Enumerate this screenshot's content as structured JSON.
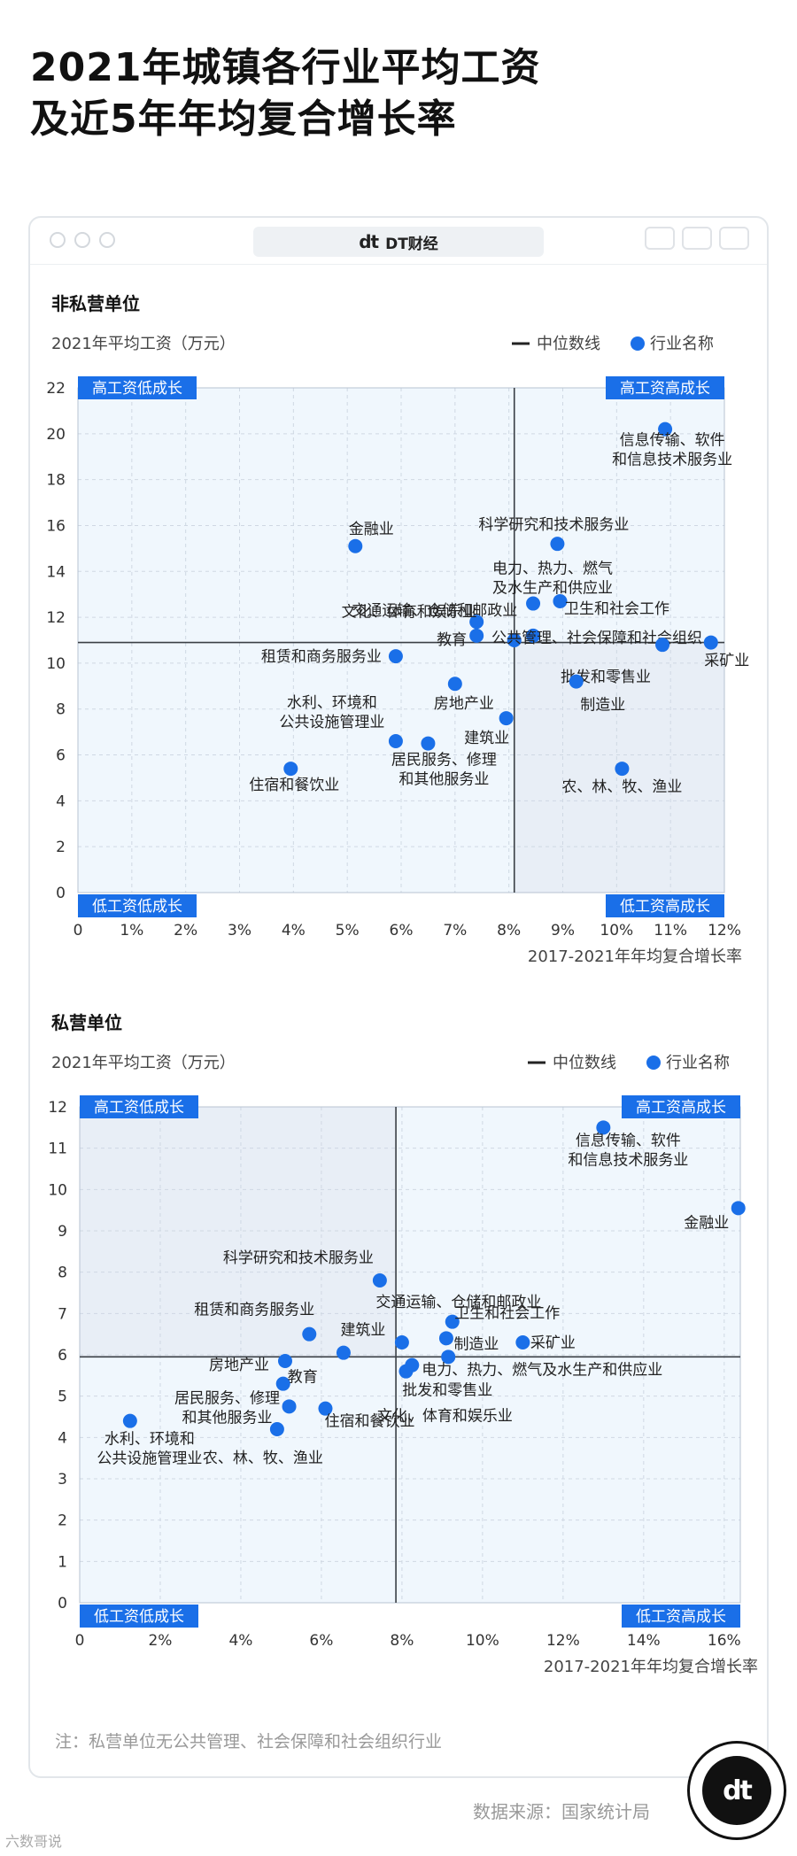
{
  "title": {
    "line1": "2021年城镇各行业平均工资",
    "line2": "及近5年年均复合增长率"
  },
  "window": {
    "brand": "DT财经",
    "logo": "dt"
  },
  "legend": {
    "median": "中位数线",
    "industry": "行业名称"
  },
  "quadrants": {
    "top_left": "高工资低成长",
    "top_right": "高工资高成长",
    "bottom_left": "低工资低成长",
    "bottom_right": "低工资高成长"
  },
  "colors": {
    "point": "#1a6fe8",
    "label_bg": "#1a6fe8",
    "quad_light": "#f0f7fd",
    "quad_dark": "#e8eef6",
    "median": "#3a3f45"
  },
  "chart_data": [
    {
      "type": "scatter",
      "title": "非私营单位",
      "ylabel": "2021年平均工资（万元）",
      "xlabel": "2017-2021年年均复合增长率",
      "xlim": [
        0,
        12
      ],
      "ylim": [
        0,
        22
      ],
      "xticks": [
        "0",
        "1%",
        "2%",
        "3%",
        "4%",
        "5%",
        "6%",
        "7%",
        "8%",
        "9%",
        "10%",
        "11%",
        "12%"
      ],
      "yticks": [
        "0",
        "2",
        "4",
        "6",
        "8",
        "10",
        "12",
        "14",
        "16",
        "18",
        "20",
        "22"
      ],
      "median": {
        "x": 8.1,
        "y": 10.9
      },
      "points": [
        {
          "name": "信息传输、软件和信息技术服务业",
          "lines": [
            "信息传输、软件",
            "和信息技术服务业"
          ],
          "x": 10.9,
          "y": 20.2
        },
        {
          "name": "金融业",
          "lines": [
            "金融业"
          ],
          "x": 5.15,
          "y": 15.1
        },
        {
          "name": "科学研究和技术服务业",
          "lines": [
            "科学研究和技术服务业"
          ],
          "x": 8.9,
          "y": 15.2
        },
        {
          "name": "电力、热力、燃气及水生产和供应业",
          "lines": [
            "电力、热力、燃气",
            "及水生产和供应业"
          ],
          "x": 8.45,
          "y": 12.6
        },
        {
          "name": "卫生和社会工作",
          "lines": [
            "卫生和社会工作"
          ],
          "x": 8.95,
          "y": 12.7
        },
        {
          "name": "交通运输、仓储和邮政业",
          "lines": [
            "交通运输、仓储和邮政业"
          ],
          "x": 8.1,
          "y": 11.0
        },
        {
          "name": "文化、体育和娱乐业",
          "lines": [
            "文化、体育和娱乐业"
          ],
          "x": 7.4,
          "y": 11.8
        },
        {
          "name": "教育",
          "lines": [
            "教育"
          ],
          "x": 7.4,
          "y": 11.2
        },
        {
          "name": "公共管理、社会保障和社会组织",
          "lines": [
            "公共管理、社会保障和社会组织"
          ],
          "x": 8.45,
          "y": 11.2
        },
        {
          "name": "采矿业",
          "lines": [
            "采矿业"
          ],
          "x": 11.75,
          "y": 10.9
        },
        {
          "name": "租赁和商务服务业",
          "lines": [
            "租赁和商务服务业"
          ],
          "x": 5.9,
          "y": 10.3
        },
        {
          "name": "批发和零售业",
          "lines": [
            "批发和零售业"
          ],
          "x": 10.85,
          "y": 10.8
        },
        {
          "name": "房地产业",
          "lines": [
            "房地产业"
          ],
          "x": 7.0,
          "y": 9.1
        },
        {
          "name": "制造业",
          "lines": [
            "制造业"
          ],
          "x": 9.25,
          "y": 9.2
        },
        {
          "name": "建筑业",
          "lines": [
            "建筑业"
          ],
          "x": 7.95,
          "y": 7.6
        },
        {
          "name": "水利、环境和公共设施管理业",
          "lines": [
            "水利、环境和",
            "公共设施管理业"
          ],
          "x": 5.9,
          "y": 6.6
        },
        {
          "name": "居民服务、修理和其他服务业",
          "lines": [
            "居民服务、修理",
            "和其他服务业"
          ],
          "x": 6.5,
          "y": 6.5
        },
        {
          "name": "住宿和餐饮业",
          "lines": [
            "住宿和餐饮业"
          ],
          "x": 3.95,
          "y": 5.4
        },
        {
          "name": "农、林、牧、渔业",
          "lines": [
            "农、林、牧、渔业"
          ],
          "x": 10.1,
          "y": 5.4
        }
      ]
    },
    {
      "type": "scatter",
      "title": "私营单位",
      "ylabel": "2021年平均工资（万元）",
      "xlabel": "2017-2021年年均复合增长率",
      "xlim": [
        0,
        16.4
      ],
      "ylim": [
        0,
        12
      ],
      "xticks": [
        "0",
        "2%",
        "4%",
        "6%",
        "8%",
        "10%",
        "12%",
        "14%",
        "16%"
      ],
      "yticks": [
        "0",
        "1",
        "2",
        "3",
        "4",
        "5",
        "6",
        "7",
        "8",
        "9",
        "10",
        "11",
        "12"
      ],
      "median": {
        "x": 7.85,
        "y": 5.95
      },
      "points": [
        {
          "name": "信息传输、软件和信息技术服务业",
          "lines": [
            "信息传输、软件",
            "和信息技术服务业"
          ],
          "x": 13.0,
          "y": 11.5
        },
        {
          "name": "金融业",
          "lines": [
            "金融业"
          ],
          "x": 16.35,
          "y": 9.55
        },
        {
          "name": "科学研究和技术服务业",
          "lines": [
            "科学研究和技术服务业"
          ],
          "x": 7.45,
          "y": 7.8
        },
        {
          "name": "交通运输、仓储和邮政业",
          "lines": [
            "交通运输、仓储和邮政业"
          ],
          "x": 8.0,
          "y": 6.3
        },
        {
          "name": "卫生和社会工作",
          "lines": [
            "卫生和社会工作"
          ],
          "x": 9.25,
          "y": 6.8
        },
        {
          "name": "制造业",
          "lines": [
            "制造业"
          ],
          "x": 9.1,
          "y": 6.4
        },
        {
          "name": "采矿业",
          "lines": [
            "采矿业"
          ],
          "x": 11.0,
          "y": 6.3
        },
        {
          "name": "租赁和商务服务业",
          "lines": [
            "租赁和商务服务业"
          ],
          "x": 5.7,
          "y": 6.5
        },
        {
          "name": "建筑业",
          "lines": [
            "建筑业"
          ],
          "x": 6.55,
          "y": 6.05
        },
        {
          "name": "电力、热力、燃气及水生产和供应业",
          "lines": [
            "电力、热力、燃气及水生产和供应业"
          ],
          "x": 9.15,
          "y": 5.95
        },
        {
          "name": "房地产业",
          "lines": [
            "房地产业"
          ],
          "x": 5.1,
          "y": 5.85
        },
        {
          "name": "批发和零售业",
          "lines": [
            "批发和零售业"
          ],
          "x": 8.25,
          "y": 5.75
        },
        {
          "name": "文化、体育和娱乐业",
          "lines": [
            "文化、体育和娱乐业"
          ],
          "x": 8.1,
          "y": 5.6
        },
        {
          "name": "教育",
          "lines": [
            "教育"
          ],
          "x": 5.05,
          "y": 5.3
        },
        {
          "name": "居民服务、修理和其他服务业",
          "lines": [
            "居民服务、修理",
            "和其他服务业"
          ],
          "x": 5.2,
          "y": 4.75
        },
        {
          "name": "住宿和餐饮业",
          "lines": [
            "住宿和餐饮业"
          ],
          "x": 6.1,
          "y": 4.7
        },
        {
          "name": "农、林、牧、渔业",
          "lines": [
            "农、林、牧、渔业"
          ],
          "x": 4.9,
          "y": 4.2
        },
        {
          "name": "水利、环境和公共设施管理业",
          "lines": [
            "水利、环境和",
            "公共设施管理业"
          ],
          "x": 1.25,
          "y": 4.4
        }
      ]
    }
  ],
  "note": "注：私营单位无公共管理、社会保障和社会组织行业",
  "source": "数据来源：国家统计局",
  "badge": "dt",
  "watermark": "六数哥说"
}
